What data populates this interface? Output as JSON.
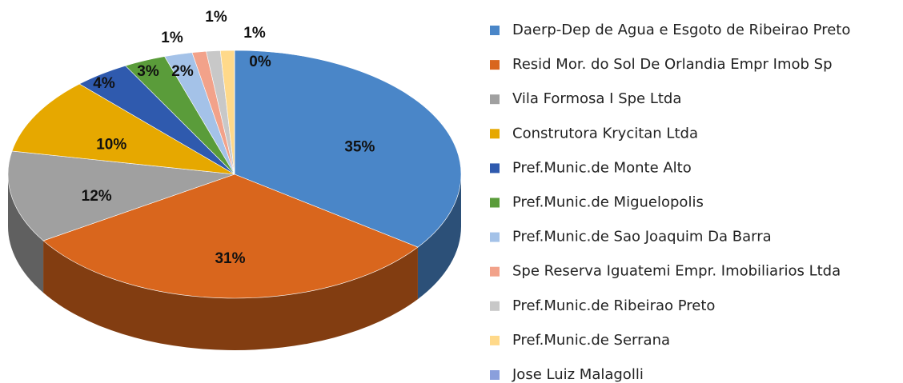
{
  "chart_data": {
    "type": "pie",
    "three_d": true,
    "categories": [
      "Daerp-Dep de Agua e Esgoto de Ribeirao Preto",
      "Resid Mor. do Sol De Orlandia Empr Imob Sp",
      "Vila Formosa I Spe Ltda",
      "Construtora Krycitan Ltda",
      "Pref.Munic.de Monte Alto",
      "Pref.Munic.de Miguelopolis",
      "Pref.Munic.de Sao Joaquim Da Barra",
      "Spe Reserva Iguatemi Empr. Imobiliarios Ltda",
      "Pref.Munic.de Ribeirao Preto",
      "Pref.Munic.de Serrana",
      "Jose Luiz Malagolli"
    ],
    "values": [
      35,
      31,
      12,
      10,
      4,
      3,
      2,
      1,
      1,
      1,
      0
    ],
    "value_labels": [
      "35%",
      "31%",
      "12%",
      "10%",
      "4%",
      "3%",
      "2%",
      "1%",
      "1%",
      "1%",
      "0%"
    ],
    "colors": [
      "#4a86c8",
      "#d9661d",
      "#a0a0a0",
      "#e6a800",
      "#2f5aae",
      "#5a9c3a",
      "#a4c2e8",
      "#f2a28a",
      "#c8c8c8",
      "#ffd98a",
      "#8a9fdc"
    ],
    "legend": "right"
  }
}
